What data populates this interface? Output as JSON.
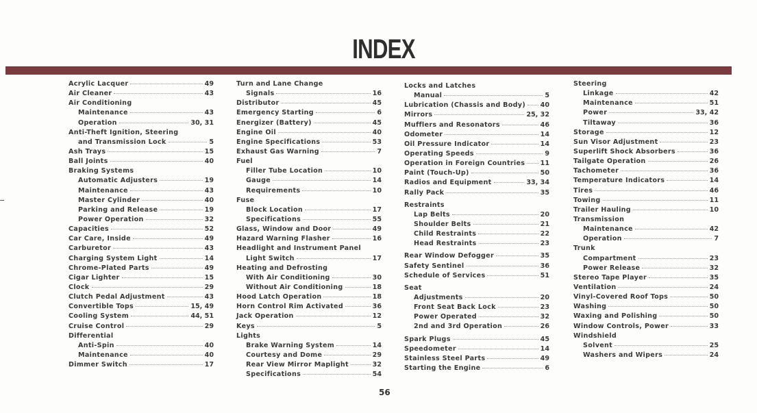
{
  "title": "INDEX",
  "page_number": "56",
  "colors": {
    "bar": "#7b3c40",
    "text": "#3a3a3a"
  },
  "columns": [
    [
      {
        "text": "Acrylic Lacquer",
        "page": "49"
      },
      {
        "text": "Air Cleaner",
        "page": "43"
      },
      {
        "text": "Air Conditioning",
        "page": ""
      },
      {
        "text": "Maintenance",
        "page": "43",
        "indent": true
      },
      {
        "text": "Operation",
        "page": "30, 31",
        "indent": true
      },
      {
        "text": "Anti-Theft Ignition, Steering",
        "page": ""
      },
      {
        "text": "and Transmission Lock",
        "page": "5",
        "indent": true
      },
      {
        "text": "Ash Trays",
        "page": "15"
      },
      {
        "text": "Ball Joints",
        "page": "40"
      },
      {
        "text": "Braking Systems",
        "page": ""
      },
      {
        "text": "Automatic Adjusters",
        "page": "19",
        "indent": true
      },
      {
        "text": "Maintenance",
        "page": "43",
        "indent": true
      },
      {
        "text": "Master Cylinder",
        "page": "40",
        "indent": true
      },
      {
        "text": "Parking and Release",
        "page": "19",
        "indent": true
      },
      {
        "text": "Power Operation",
        "page": "32",
        "indent": true
      },
      {
        "text": "Capacities",
        "page": "52"
      },
      {
        "text": "Car Care, Inside",
        "page": "49"
      },
      {
        "text": "Carburetor",
        "page": "43"
      },
      {
        "text": "Charging System Light",
        "page": "14"
      },
      {
        "text": "Chrome-Plated Parts",
        "page": "49"
      },
      {
        "text": "Cigar Lighter",
        "page": "15"
      },
      {
        "text": "Clock",
        "page": "29"
      },
      {
        "text": "Clutch Pedal Adjustment",
        "page": "43"
      },
      {
        "text": "Convertible Tops",
        "page": "15, 49"
      },
      {
        "text": "Cooling System",
        "page": "44, 51"
      },
      {
        "text": "Cruise Control",
        "page": "29"
      },
      {
        "text": "Differential",
        "page": ""
      },
      {
        "text": "Anti-Spin",
        "page": "40",
        "indent": true
      },
      {
        "text": "Maintenance",
        "page": "40",
        "indent": true
      },
      {
        "text": "Dimmer Switch",
        "page": "17"
      }
    ],
    [
      {
        "text": "Turn and Lane Change",
        "page": ""
      },
      {
        "text": "Signals",
        "page": "16",
        "indent": true
      },
      {
        "text": "Distributor",
        "page": "45"
      },
      {
        "text": "Emergency Starting",
        "page": "6"
      },
      {
        "text": "Energizer (Battery)",
        "page": "45"
      },
      {
        "text": "Engine Oil",
        "page": "40"
      },
      {
        "text": "Engine Specifications",
        "page": "53"
      },
      {
        "text": "Exhaust Gas Warning",
        "page": "7"
      },
      {
        "text": "Fuel",
        "page": ""
      },
      {
        "text": "Filler Tube Location",
        "page": "10",
        "indent": true
      },
      {
        "text": "Gauge",
        "page": "14",
        "indent": true
      },
      {
        "text": "Requirements",
        "page": "10",
        "indent": true
      },
      {
        "text": "Fuse",
        "page": ""
      },
      {
        "text": "Block Location",
        "page": "17",
        "indent": true
      },
      {
        "text": "Specifications",
        "page": "55",
        "indent": true
      },
      {
        "text": "Glass, Window and Door",
        "page": "49"
      },
      {
        "text": "Hazard Warning Flasher",
        "page": "16"
      },
      {
        "text": "Headlight and Instrument Panel",
        "page": ""
      },
      {
        "text": "Light Switch",
        "page": "17",
        "indent": true
      },
      {
        "text": "Heating and Defrosting",
        "page": ""
      },
      {
        "text": "With Air Conditioning",
        "page": "30",
        "indent": true
      },
      {
        "text": "Without Air Conditioning",
        "page": "18",
        "indent": true
      },
      {
        "text": "Hood Latch Operation",
        "page": "18"
      },
      {
        "text": "Horn Control Rim Activated",
        "page": "36"
      },
      {
        "text": "Jack Operation",
        "page": "12"
      },
      {
        "text": "Keys",
        "page": "5"
      },
      {
        "text": "Lights",
        "page": ""
      },
      {
        "text": "Brake Warning System",
        "page": "14",
        "indent": true
      },
      {
        "text": "Courtesy and Dome",
        "page": "29",
        "indent": true
      },
      {
        "text": "Rear View Mirror Maplight",
        "page": "32",
        "indent": true
      },
      {
        "text": "Specifications",
        "page": "54",
        "indent": true
      }
    ],
    [
      {
        "text": "Locks and Latches",
        "page": ""
      },
      {
        "text": "Manual",
        "page": "5",
        "indent": true
      },
      {
        "text": "Lubrication (Chassis and Body)",
        "page": "40"
      },
      {
        "text": "Mirrors",
        "page": "25, 32"
      },
      {
        "text": "Mufflers and Resonators",
        "page": "46"
      },
      {
        "text": "Odometer",
        "page": "14"
      },
      {
        "text": "Oil Pressure Indicator",
        "page": "14"
      },
      {
        "text": "Operating Speeds",
        "page": "9"
      },
      {
        "text": "Operation in Foreign Countries",
        "page": "11"
      },
      {
        "text": "Paint (Touch-Up)",
        "page": "50"
      },
      {
        "text": "Radios and Equipment",
        "page": "33, 34"
      },
      {
        "text": "Rally Pack",
        "page": "35"
      },
      {
        "text": "Restraints",
        "page": "",
        "gap": true
      },
      {
        "text": "Lap Belts",
        "page": "20",
        "indent": true
      },
      {
        "text": "Shoulder Belts",
        "page": "21",
        "indent": true
      },
      {
        "text": "Child Restraints",
        "page": "22",
        "indent": true
      },
      {
        "text": "Head Restraints",
        "page": "23",
        "indent": true
      },
      {
        "text": "Rear Window Defogger",
        "page": "35",
        "gap": true
      },
      {
        "text": "Safety Sentinel",
        "page": "36"
      },
      {
        "text": "Schedule of Services",
        "page": "51"
      },
      {
        "text": "Seat",
        "page": "",
        "gap": true
      },
      {
        "text": "Adjustments",
        "page": "20",
        "indent": true
      },
      {
        "text": "Front Seat Back Lock",
        "page": "23",
        "indent": true
      },
      {
        "text": "Power Operated",
        "page": "32",
        "indent": true
      },
      {
        "text": "2nd and 3rd Operation",
        "page": "26",
        "indent": true
      },
      {
        "text": "Spark Plugs",
        "page": "45",
        "gap": true
      },
      {
        "text": "Speedometer",
        "page": "14"
      },
      {
        "text": "Stainless Steel Parts",
        "page": "49"
      },
      {
        "text": "Starting the Engine",
        "page": "6"
      }
    ],
    [
      {
        "text": "Steering",
        "page": ""
      },
      {
        "text": "Linkage",
        "page": "42",
        "indent": true
      },
      {
        "text": "Maintenance",
        "page": "51",
        "indent": true
      },
      {
        "text": "Power",
        "page": "33, 42",
        "indent": true
      },
      {
        "text": "Tiltaway",
        "page": "36",
        "indent": true
      },
      {
        "text": "Storage",
        "page": "12"
      },
      {
        "text": "Sun Visor Adjustment",
        "page": "23"
      },
      {
        "text": "Superlift Shock Absorbers",
        "page": "36"
      },
      {
        "text": "Tailgate Operation",
        "page": "26"
      },
      {
        "text": "Tachometer",
        "page": "36"
      },
      {
        "text": "Temperature Indicators",
        "page": "14"
      },
      {
        "text": "Tires",
        "page": "46"
      },
      {
        "text": "Towing",
        "page": "11"
      },
      {
        "text": "Trailer Hauling",
        "page": "10"
      },
      {
        "text": "Transmission",
        "page": ""
      },
      {
        "text": "Maintenance",
        "page": "42",
        "indent": true
      },
      {
        "text": "Operation",
        "page": "7",
        "indent": true
      },
      {
        "text": "Trunk",
        "page": ""
      },
      {
        "text": "Compartment",
        "page": "23",
        "indent": true
      },
      {
        "text": "Power Release",
        "page": "32",
        "indent": true
      },
      {
        "text": "Stereo Tape Player",
        "page": "35"
      },
      {
        "text": "Ventilation",
        "page": "24"
      },
      {
        "text": "Vinyl-Covered Roof Tops",
        "page": "50"
      },
      {
        "text": "Washing",
        "page": "50"
      },
      {
        "text": "Waxing and Polishing",
        "page": "50"
      },
      {
        "text": "Window Controls, Power",
        "page": "33"
      },
      {
        "text": "Windshield",
        "page": ""
      },
      {
        "text": "Solvent",
        "page": "25",
        "indent": true
      },
      {
        "text": "Washers and Wipers",
        "page": "24",
        "indent": true
      }
    ]
  ]
}
